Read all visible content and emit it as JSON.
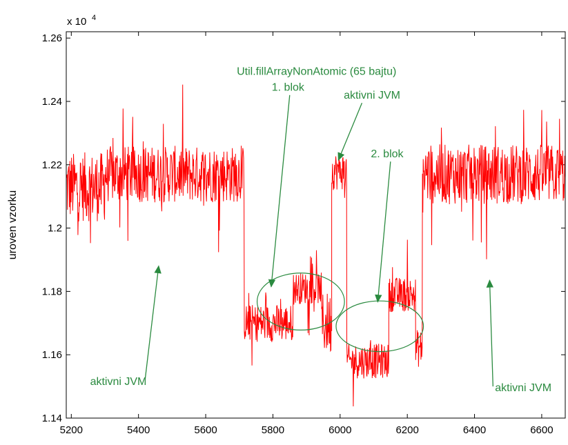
{
  "chart_data": {
    "type": "line",
    "title": "",
    "xlabel": "",
    "ylabel": "uroven vzorku",
    "y_multiplier_label": "x 10",
    "y_multiplier_exponent": "4",
    "xlim": [
      5185,
      6670
    ],
    "ylim": [
      11400,
      12620
    ],
    "xticks": [
      5200,
      5400,
      5600,
      5800,
      6000,
      6200,
      6400,
      6600
    ],
    "yticks": [
      11400,
      11600,
      11800,
      12000,
      12200,
      12400,
      12600
    ],
    "ytick_labels": [
      "1.14",
      "1.16",
      "1.18",
      "1.2",
      "1.22",
      "1.24",
      "1.26"
    ],
    "grid": false,
    "series": [
      {
        "color": "#ff0000",
        "segments": [
          {
            "x": [
              5185,
              5300
            ],
            "level": 12130,
            "noise": 110
          },
          {
            "x": [
              5300,
              5715
            ],
            "level": 12170,
            "noise": 90
          },
          {
            "x": [
              5715,
              5860
            ],
            "level": 11700,
            "noise": 60
          },
          {
            "x": [
              5860,
              5945
            ],
            "level": 11810,
            "noise": 50
          },
          {
            "x": [
              5945,
              5975
            ],
            "level": 11700,
            "noise": 100
          },
          {
            "x": [
              5975,
              6020
            ],
            "level": 12180,
            "noise": 60
          },
          {
            "x": [
              6020,
              6145
            ],
            "level": 11580,
            "noise": 55
          },
          {
            "x": [
              6145,
              6225
            ],
            "level": 11790,
            "noise": 55
          },
          {
            "x": [
              6225,
              6245
            ],
            "level": 11620,
            "noise": 60
          },
          {
            "x": [
              6245,
              6670
            ],
            "level": 12170,
            "noise": 95
          }
        ]
      }
    ],
    "annotations": [
      {
        "text": "Util.fillArrayNonAtomic (65 bajtu)",
        "x": 5930,
        "y": 12484
      },
      {
        "text": "1. blok",
        "x": 5845,
        "y": 12434
      },
      {
        "text": "aktivni JVM",
        "x": 6095,
        "y": 12409
      },
      {
        "text": "2. blok",
        "x": 6140,
        "y": 12224
      },
      {
        "text": "aktivni JVM",
        "x": 5340,
        "y": 11505
      },
      {
        "text": "aktivni JVM",
        "x": 6545,
        "y": 11485
      }
    ],
    "arrows": [
      {
        "from": [
          5850,
          12420
        ],
        "to": [
          5795,
          11815
        ]
      },
      {
        "from": [
          6065,
          12395
        ],
        "to": [
          5995,
          12215
        ]
      },
      {
        "from": [
          6150,
          12210
        ],
        "to": [
          6112,
          11767
        ]
      },
      {
        "from": [
          5420,
          11525
        ],
        "to": [
          5460,
          11880
        ]
      },
      {
        "from": [
          6455,
          11500
        ],
        "to": [
          6445,
          11835
        ]
      }
    ],
    "ellipses": [
      {
        "cx": 5883,
        "cy": 11768,
        "rx": 130,
        "ry": 90
      },
      {
        "cx": 6118,
        "cy": 11690,
        "rx": 130,
        "ry": 80
      }
    ]
  }
}
